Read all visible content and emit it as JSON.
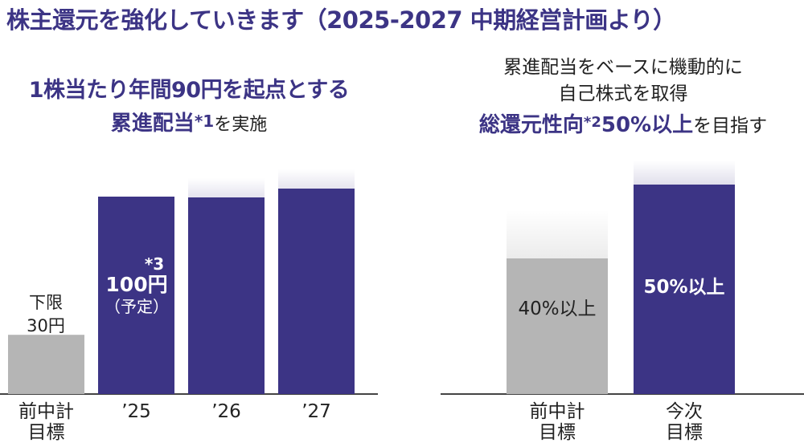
{
  "title": "株主還元を強化していきます（2025-2027 中期経営計画より）",
  "left_heading": {
    "line1": "1株当たり年間90円を起点とする",
    "line2_highlight": "累進配当",
    "line2_note": "*1",
    "line2_rest": "を実施"
  },
  "right_heading": {
    "line1": "累進配当をベースに機動的に",
    "line2": "自己株式を取得",
    "line3_highlight_a": "総還元性向",
    "line3_note": "*2",
    "line3_highlight_b": "50%以上",
    "line3_rest": "を目指す"
  },
  "colors": {
    "accent": "#3c3485",
    "gray": "#b5b5b5",
    "text": "#222222"
  },
  "chart_data": [
    {
      "type": "bar",
      "description_text": {
        "bar_labels": [
          {
            "line1": "下限",
            "line2": "30円"
          },
          {
            "note": "*3",
            "line1": "100円",
            "line2": "（予定）"
          },
          {},
          {}
        ]
      },
      "categories": [
        "前中計\n目標",
        "’25",
        "’26",
        "’27"
      ],
      "category_lines": [
        [
          "前中計",
          "目標"
        ],
        [
          "’25"
        ],
        [
          "’26"
        ],
        [
          "’27"
        ]
      ],
      "values": [
        30,
        100,
        null,
        null
      ],
      "styles": [
        "gray",
        "accent",
        "accent-fade",
        "accent-fade"
      ],
      "unit": "円"
    },
    {
      "type": "bar",
      "categories": [
        "前中計\n目標",
        "今次\n目標"
      ],
      "category_lines": [
        [
          "前中計",
          "目標"
        ],
        [
          "今次",
          "目標"
        ]
      ],
      "values": [
        40,
        50
      ],
      "value_labels": [
        "40%以上",
        "50%以上"
      ],
      "styles": [
        "gray-fade",
        "accent-fade"
      ],
      "unit": "%"
    }
  ]
}
